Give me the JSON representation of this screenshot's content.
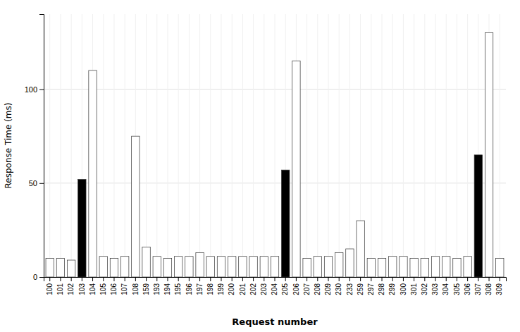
{
  "chart_data": {
    "type": "bar",
    "xlabel": "Request number",
    "ylabel": "Response Time (ms)",
    "categories": [
      "100",
      "101",
      "102",
      "103",
      "104",
      "105",
      "106",
      "107",
      "108",
      "159",
      "193",
      "194",
      "195",
      "196",
      "197",
      "198",
      "199",
      "200",
      "201",
      "202",
      "203",
      "204",
      "205",
      "206",
      "207",
      "208",
      "209",
      "230",
      "233",
      "259",
      "297",
      "298",
      "299",
      "300",
      "301",
      "302",
      "303",
      "304",
      "305",
      "306",
      "307",
      "308",
      "309"
    ],
    "values": [
      10,
      10,
      9,
      52,
      110,
      11,
      10,
      11,
      75,
      16,
      11,
      10,
      11,
      11,
      13,
      11,
      11,
      11,
      11,
      11,
      11,
      11,
      57,
      115,
      10,
      11,
      11,
      13,
      15,
      30,
      10,
      10,
      11,
      11,
      10,
      10,
      11,
      11,
      10,
      11,
      65,
      130,
      10
    ],
    "colors": [
      "white",
      "white",
      "white",
      "black",
      "white",
      "white",
      "white",
      "white",
      "white",
      "white",
      "white",
      "white",
      "white",
      "white",
      "white",
      "white",
      "white",
      "white",
      "white",
      "white",
      "white",
      "white",
      "black",
      "white",
      "white",
      "white",
      "white",
      "white",
      "white",
      "white",
      "white",
      "white",
      "white",
      "white",
      "white",
      "white",
      "white",
      "white",
      "white",
      "white",
      "black",
      "white",
      "white"
    ],
    "ylim": [
      0,
      140
    ],
    "yticks": [
      0,
      50,
      100
    ],
    "grid": true
  }
}
